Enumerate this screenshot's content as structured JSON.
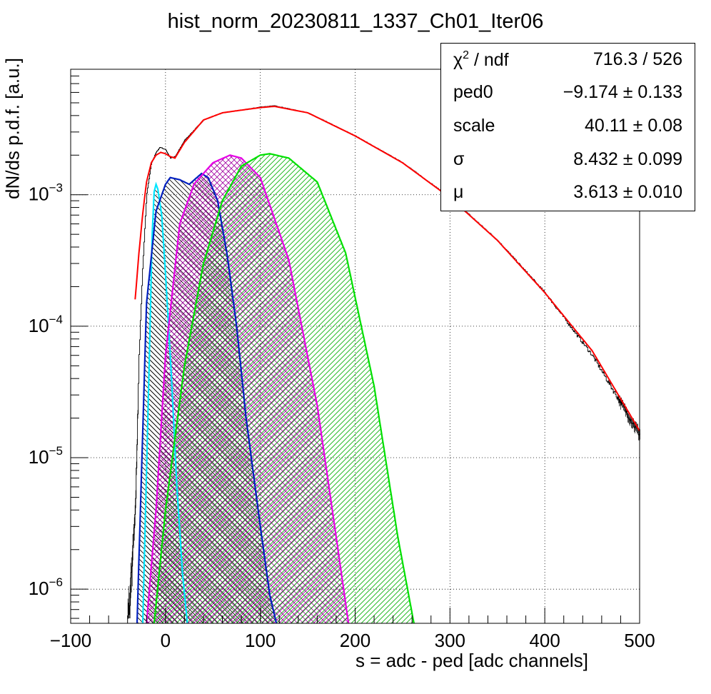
{
  "chart_data": {
    "type": "histogram_with_fit",
    "title": "hist_norm_20230811_1337_Ch01_Iter06",
    "xlabel": "s = adc - ped [adc channels]",
    "ylabel": "dN/ds p.d.f. [a.u.]",
    "xlim": [
      -100,
      500
    ],
    "ylim": [
      5.5e-07,
      0.009
    ],
    "y_scale": "log",
    "grid": true,
    "x_ticks": [
      "−100",
      "0",
      "100",
      "200",
      "300",
      "400",
      "500"
    ],
    "y_ticks": [
      "10^-6",
      "10^-5",
      "10^-4",
      "10^-3"
    ],
    "stats_box": [
      {
        "key": "χ2 / ndf",
        "value": "716.3 / 526"
      },
      {
        "key": "ped0",
        "value": "−9.174 ± 0.133"
      },
      {
        "key": "scale",
        "value": "40.11 ± 0.08"
      },
      {
        "key": "σ",
        "value": "8.432 ± 0.099"
      },
      {
        "key": "μ",
        "value": "3.613 ± 0.010"
      }
    ],
    "series": [
      {
        "kind": "histogram",
        "color": "#000000",
        "x": [
          -40,
          -32,
          -28,
          -24,
          -20,
          -15,
          -10,
          -6,
          0,
          5,
          10,
          20,
          40,
          60,
          80,
          100,
          115,
          150,
          200,
          250,
          300,
          350,
          400,
          450,
          500
        ],
        "y": [
          5e-07,
          4e-06,
          6e-05,
          0.0003,
          0.001,
          0.00175,
          0.0021,
          0.0023,
          0.0022,
          0.0019,
          0.00195,
          0.0026,
          0.0037,
          0.0042,
          0.0044,
          0.00465,
          0.00475,
          0.0042,
          0.0028,
          0.00175,
          0.00095,
          0.00045,
          0.00018,
          6e-05,
          1.5e-05
        ]
      },
      {
        "kind": "fit",
        "color": "#ff0000",
        "x": [
          -32,
          -28,
          -24,
          -20,
          -15,
          -10,
          -5,
          0,
          5,
          10,
          20,
          40,
          60,
          80,
          100,
          115,
          150,
          200,
          250,
          300,
          350,
          400,
          450,
          500
        ],
        "y": [
          0.00016,
          0.00036,
          0.00072,
          0.00125,
          0.00175,
          0.002,
          0.0021,
          0.00205,
          0.00195,
          0.0019,
          0.0025,
          0.0037,
          0.0042,
          0.0044,
          0.0046,
          0.0047,
          0.0042,
          0.0028,
          0.00175,
          0.00095,
          0.00045,
          0.00018,
          6.5e-05,
          1.6e-05
        ]
      },
      {
        "kind": "component",
        "color": "#00e5ff",
        "hatch": "diag-left",
        "x": [
          -24,
          -18,
          -14,
          -12,
          -10,
          -8,
          -4,
          0,
          6,
          12,
          18,
          23
        ],
        "y": [
          5.5e-07,
          3e-05,
          0.0005,
          0.00105,
          0.0012,
          0.0011,
          0.0007,
          0.00025,
          4.5e-05,
          6e-06,
          1.3e-06,
          5.5e-07
        ]
      },
      {
        "kind": "component",
        "color": "#0020c0",
        "hatch": "diag-left",
        "x": [
          -30,
          -20,
          -10,
          0,
          5,
          15,
          25,
          38,
          45,
          55,
          65,
          75,
          85,
          100,
          110,
          117
        ],
        "y": [
          5.5e-07,
          0.00015,
          0.00075,
          0.0012,
          0.00135,
          0.0013,
          0.0012,
          0.00145,
          0.00135,
          0.0009,
          0.00035,
          0.0001,
          2e-05,
          3e-06,
          9e-07,
          5.5e-07
        ]
      },
      {
        "kind": "component",
        "color": "#e600e6",
        "hatch": "cross",
        "x": [
          -20,
          -10,
          0,
          15,
          30,
          50,
          68,
          80,
          100,
          130,
          160,
          180,
          193
        ],
        "y": [
          5.5e-07,
          4e-06,
          6e-05,
          0.0006,
          0.0012,
          0.00175,
          0.002,
          0.0019,
          0.00135,
          0.00032,
          2.5e-05,
          2.5e-06,
          5.5e-07
        ]
      },
      {
        "kind": "component",
        "color": "#00e000",
        "hatch": "diag-right",
        "x": [
          -12,
          0,
          20,
          40,
          60,
          80,
          100,
          110,
          130,
          160,
          190,
          220,
          245,
          262
        ],
        "y": [
          5.5e-07,
          4e-06,
          5e-05,
          0.0003,
          0.0009,
          0.00165,
          0.002,
          0.00205,
          0.0019,
          0.00125,
          0.00036,
          3.5e-05,
          2.5e-06,
          5.5e-07
        ]
      }
    ]
  }
}
